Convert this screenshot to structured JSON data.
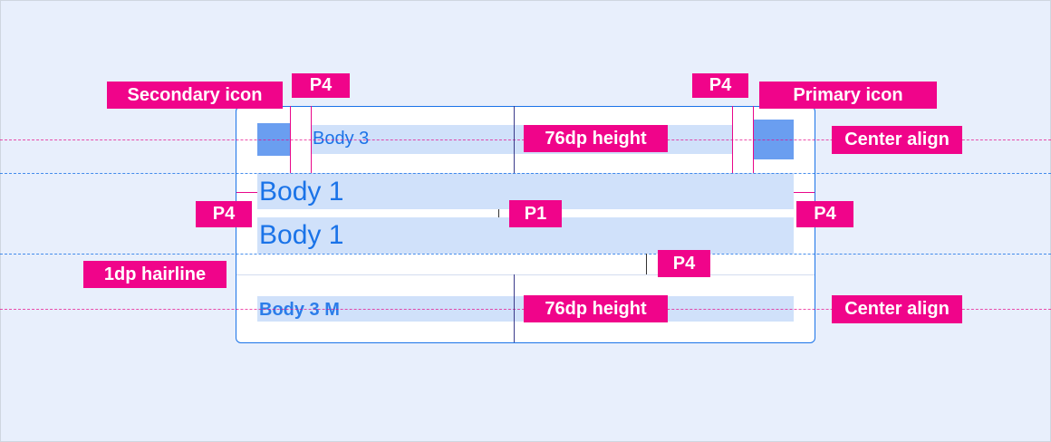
{
  "list_item": {
    "secondary_text": "Body 3",
    "primary_text": "Body 1",
    "secondary_line": "Body 1",
    "meta_text": "Body 3 M"
  },
  "annotations": {
    "secondary_icon": "Secondary icon",
    "primary_icon": "Primary icon",
    "p4_left_icon": "P4",
    "p4_right_icon": "P4",
    "height_top": "76dp height",
    "height_bottom": "76dp height",
    "center_align_top": "Center align",
    "center_align_bottom": "Center align",
    "p4_left": "P4",
    "p4_right": "P4",
    "p1": "P1",
    "p4_bottom": "P4",
    "hairline": "1dp hairline"
  },
  "colors": {
    "accent": "#f0048a",
    "text": "#1a73e8",
    "highlight": "#d0e1fa",
    "icon": "#6a9ef0",
    "background": "#e8effc"
  }
}
